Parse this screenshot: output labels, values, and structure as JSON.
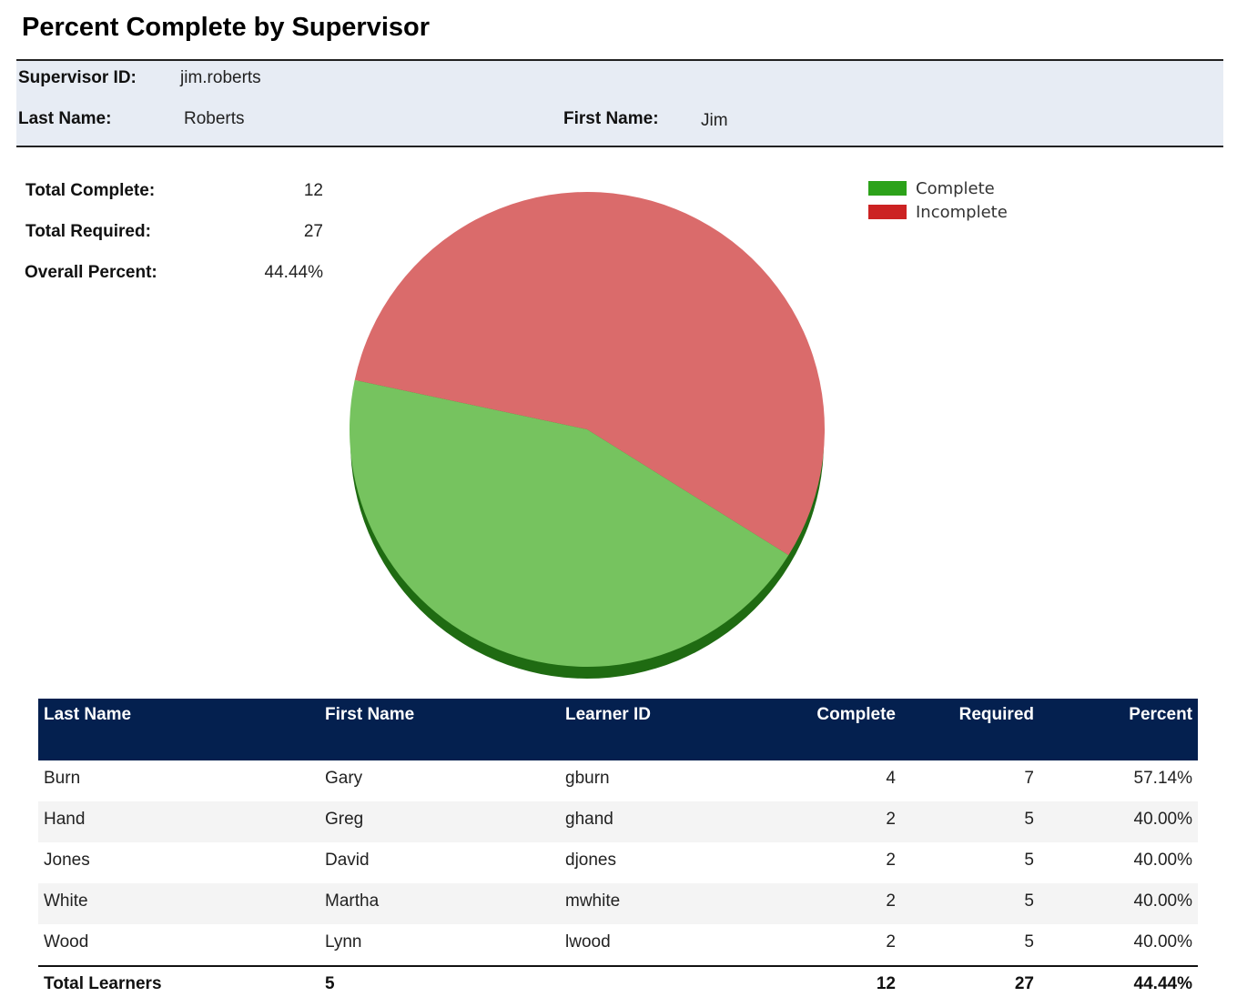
{
  "report": {
    "title": "Percent Complete by Supervisor"
  },
  "supervisor": {
    "id_label": "Supervisor ID:",
    "id_value": "jim.roberts",
    "last_name_label": "Last Name:",
    "last_name_value": "Roberts",
    "first_name_label": "First Name:",
    "first_name_value": "Jim"
  },
  "summary": {
    "total_complete_label": "Total Complete:",
    "total_complete_value": "12",
    "total_required_label": "Total Required:",
    "total_required_value": "27",
    "overall_percent_label": "Overall Percent:",
    "overall_percent_value": "44.44%"
  },
  "chart_data": {
    "type": "pie",
    "slices": [
      {
        "name": "Complete",
        "value": 12,
        "color": "#76c35f",
        "legend_color": "#2ca21a",
        "shadow_color": "#1f6b12"
      },
      {
        "name": "Incomplete",
        "value": 15,
        "color": "#da6b6b",
        "legend_color": "#cc2222",
        "shadow_color": "#8a2a2a"
      }
    ],
    "legend": {
      "position": "top-right",
      "items": [
        "Complete",
        "Incomplete"
      ]
    }
  },
  "table": {
    "headers": [
      "Last Name",
      "First Name",
      "Learner ID",
      "Complete",
      "Required",
      "Percent"
    ],
    "rows": [
      {
        "last": "Burn",
        "first": "Gary",
        "id": "gburn",
        "complete": "4",
        "required": "7",
        "percent": "57.14%"
      },
      {
        "last": "Hand",
        "first": "Greg",
        "id": "ghand",
        "complete": "2",
        "required": "5",
        "percent": "40.00%"
      },
      {
        "last": "Jones",
        "first": "David",
        "id": "djones",
        "complete": "2",
        "required": "5",
        "percent": "40.00%"
      },
      {
        "last": "White",
        "first": "Martha",
        "id": "mwhite",
        "complete": "2",
        "required": "5",
        "percent": "40.00%"
      },
      {
        "last": "Wood",
        "first": "Lynn",
        "id": "lwood",
        "complete": "2",
        "required": "5",
        "percent": "40.00%"
      }
    ],
    "totals": {
      "label": "Total Learners",
      "learners": "5",
      "complete": "12",
      "required": "27",
      "percent": "44.44%"
    }
  }
}
